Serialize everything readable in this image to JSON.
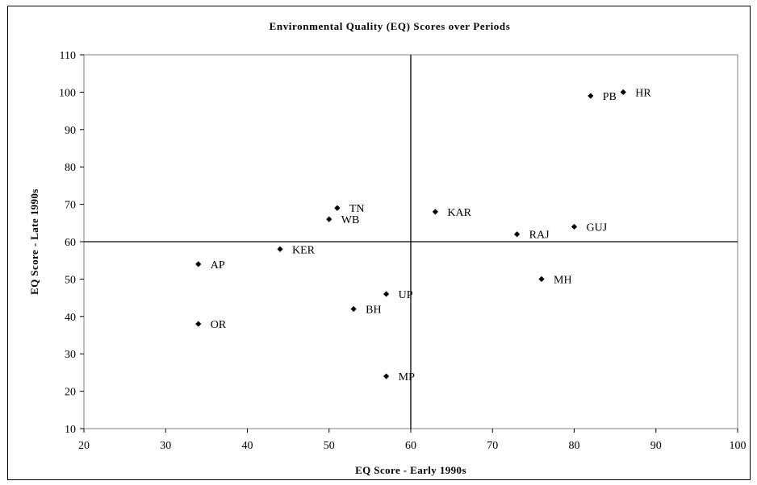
{
  "chart_data": {
    "type": "scatter",
    "title": "Environmental Quality (EQ) Scores over Periods",
    "xlabel": "EQ Score - Early 1990s",
    "ylabel": "EQ Score - Late 1990s",
    "xlim": [
      20,
      100
    ],
    "ylim": [
      10,
      110
    ],
    "xticks": [
      20,
      30,
      40,
      50,
      60,
      70,
      80,
      90,
      100
    ],
    "yticks": [
      10,
      20,
      30,
      40,
      50,
      60,
      70,
      80,
      90,
      100,
      110
    ],
    "reference_lines": {
      "x": 60,
      "y": 60
    },
    "grid": false,
    "legend": "none",
    "marker_color": "#000000",
    "points": [
      {
        "label": "HR",
        "x": 86,
        "y": 100
      },
      {
        "label": "PB",
        "x": 82,
        "y": 99
      },
      {
        "label": "TN",
        "x": 51,
        "y": 69
      },
      {
        "label": "KAR",
        "x": 63,
        "y": 68
      },
      {
        "label": "WB",
        "x": 50,
        "y": 66
      },
      {
        "label": "GUJ",
        "x": 80,
        "y": 64
      },
      {
        "label": "RAJ",
        "x": 73,
        "y": 62
      },
      {
        "label": "KER",
        "x": 44,
        "y": 58
      },
      {
        "label": "AP",
        "x": 34,
        "y": 54
      },
      {
        "label": "MH",
        "x": 76,
        "y": 50
      },
      {
        "label": "UP",
        "x": 57,
        "y": 46
      },
      {
        "label": "BH",
        "x": 53,
        "y": 42
      },
      {
        "label": "OR",
        "x": 34,
        "y": 38
      },
      {
        "label": "MP",
        "x": 57,
        "y": 24
      }
    ]
  }
}
